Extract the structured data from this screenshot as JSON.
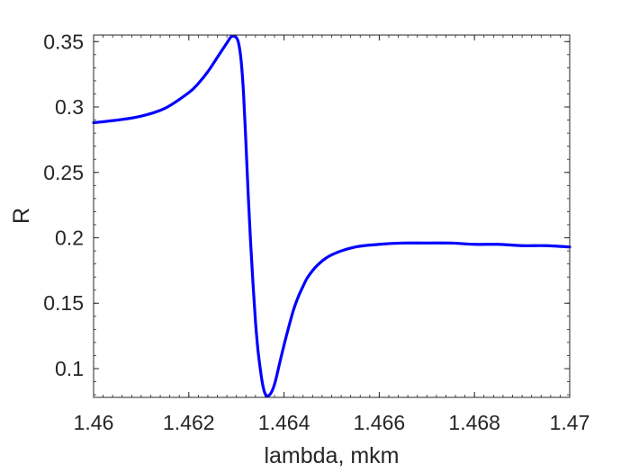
{
  "chart_data": {
    "type": "line",
    "title": "",
    "xlabel": "lambda, mkm",
    "ylabel": "R",
    "xlim": [
      1.46,
      1.47
    ],
    "ylim": [
      0.078,
      0.355
    ],
    "grid": false,
    "box": true,
    "x_ticks": [
      1.46,
      1.462,
      1.464,
      1.466,
      1.468,
      1.47
    ],
    "x_tick_labels": [
      "1.46",
      "1.462",
      "1.464",
      "1.466",
      "1.468",
      "1.47"
    ],
    "y_ticks": [
      0.1,
      0.15,
      0.2,
      0.25,
      0.3,
      0.35
    ],
    "y_tick_labels": [
      "0.1",
      "0.15",
      "0.2",
      "0.25",
      "0.3",
      "0.35"
    ],
    "series": [
      {
        "color": "#0000ff",
        "x": [
          1.46,
          1.4605,
          1.461,
          1.4615,
          1.462,
          1.4622,
          1.4624,
          1.4626,
          1.4628,
          1.4629,
          1.463,
          1.46305,
          1.4631,
          1.46315,
          1.4632,
          1.46325,
          1.4633,
          1.46335,
          1.4634,
          1.46345,
          1.4635,
          1.46355,
          1.4636,
          1.46365,
          1.4637,
          1.46375,
          1.4638,
          1.46385,
          1.4639,
          1.464,
          1.4641,
          1.4642,
          1.4643,
          1.4644,
          1.4645,
          1.4647,
          1.465,
          1.4655,
          1.466,
          1.4665,
          1.467,
          1.4675,
          1.468,
          1.4685,
          1.469,
          1.4695,
          1.47
        ],
        "y": [
          0.288,
          0.29,
          0.293,
          0.299,
          0.311,
          0.318,
          0.327,
          0.338,
          0.349,
          0.354,
          0.353,
          0.348,
          0.335,
          0.31,
          0.272,
          0.231,
          0.195,
          0.164,
          0.136,
          0.115,
          0.1,
          0.088,
          0.081,
          0.079,
          0.08,
          0.083,
          0.088,
          0.095,
          0.103,
          0.118,
          0.132,
          0.145,
          0.155,
          0.163,
          0.17,
          0.179,
          0.187,
          0.193,
          0.195,
          0.196,
          0.196,
          0.196,
          0.195,
          0.195,
          0.194,
          0.194,
          0.193
        ]
      }
    ]
  }
}
